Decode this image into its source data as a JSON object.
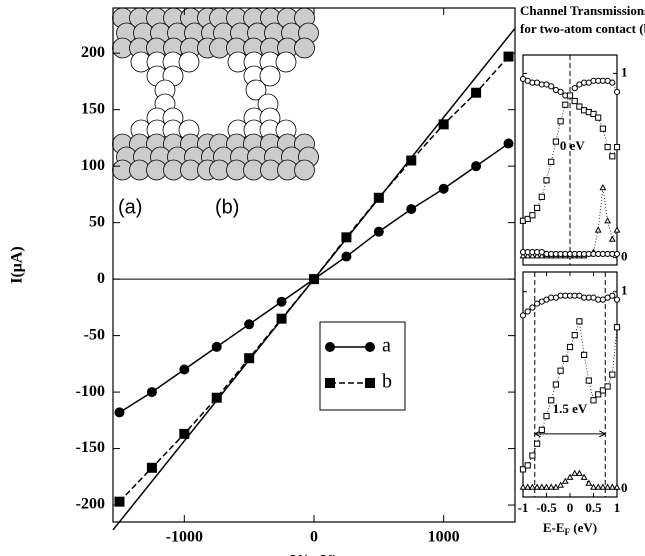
{
  "chart_data": [
    {
      "type": "line",
      "x_label": "V(mV)",
      "y_label": "I(μA)",
      "x": [
        -1500,
        -1250,
        -1000,
        -750,
        -500,
        -250,
        0,
        250,
        500,
        750,
        1000,
        1250,
        1500
      ],
      "series": [
        {
          "name": "a",
          "color": "#000000",
          "marker": "circle",
          "dash": "solid",
          "values": [
            -118,
            -100,
            -80,
            -60,
            -40,
            -20,
            0,
            20,
            42,
            62,
            80,
            100,
            120
          ]
        },
        {
          "name": "b",
          "color": "#000000",
          "marker": "square",
          "dash": "dashed",
          "values": [
            -197,
            -167,
            -137,
            -105,
            -70,
            -35,
            0,
            37,
            72,
            105,
            137,
            165,
            197
          ]
        },
        {
          "color": "#000000",
          "marker": "none",
          "dash": "solid",
          "x": [
            -1550,
            1550
          ],
          "values": [
            -222,
            222
          ]
        }
      ],
      "xlim": [
        -1550,
        1550
      ],
      "xticks": [
        -1000,
        0,
        1000
      ],
      "ylim": [
        -215,
        240
      ],
      "yticks": [
        -200,
        -150,
        -100,
        -50,
        0,
        50,
        100,
        150,
        200
      ],
      "zero_line": true,
      "legend": "lower right",
      "annotations": [
        {
          "text": "(a)"
        },
        {
          "text": "(b)"
        }
      ]
    },
    {
      "type": "line",
      "title": "Channel Transmissions",
      "subtitle": "for two-atom contact (b)",
      "x": [
        -1,
        -0.9,
        -0.8,
        -0.7,
        -0.6,
        -0.5,
        -0.4,
        -0.3,
        -0.2,
        -0.1,
        0,
        0.1,
        0.2,
        0.3,
        0.4,
        0.5,
        0.6,
        0.7,
        0.8,
        0.9,
        1
      ],
      "series": [
        {
          "color": "#000000",
          "marker": "circle",
          "values": [
            0.97,
            0.96,
            0.95,
            0.95,
            0.94,
            0.94,
            0.93,
            0.91,
            0.9,
            0.88,
            0.88,
            0.92,
            0.94,
            0.95,
            0.95,
            0.96,
            0.96,
            0.96,
            0.96,
            0.95,
            0.9
          ]
        },
        {
          "color": "#000000",
          "marker": "square",
          "values": [
            0.2,
            0.21,
            0.23,
            0.27,
            0.33,
            0.42,
            0.52,
            0.63,
            0.74,
            0.83,
            0.88,
            0.85,
            0.82,
            0.8,
            0.79,
            0.78,
            0.76,
            0.7,
            0.6,
            0.55,
            0.6
          ]
        },
        {
          "color": "#000000",
          "marker": "triangle",
          "values": [
            0.01,
            0.01,
            0.01,
            0.01,
            0.01,
            0.01,
            0.01,
            0.01,
            0.01,
            0.01,
            0.01,
            0.01,
            0.01,
            0.01,
            0.02,
            0.03,
            0.15,
            0.38,
            0.2,
            0.1,
            0.15
          ]
        },
        {
          "color": "#000000",
          "marker": "circle",
          "values": [
            0.03,
            0.03,
            0.03,
            0.03,
            0.03,
            0.02,
            0.02,
            0.02,
            0.02,
            0.02,
            0.02,
            0.02,
            0.02,
            0.02,
            0.02,
            0.02,
            0.02,
            0.02,
            0.02,
            0.02,
            0.02
          ]
        }
      ],
      "xlim": [
        -1,
        1
      ],
      "ylim": [
        -0.04,
        1.1
      ],
      "yticks": [
        0,
        1
      ],
      "vlines": [
        0
      ],
      "annotations": [
        {
          "text": "0 eV",
          "x": 0.05,
          "y": 0.6
        }
      ]
    },
    {
      "type": "line",
      "x_label": "E-E",
      "x_label_sub": "F",
      "x_label_suffix": " (eV)",
      "x": [
        -1,
        -0.9,
        -0.8,
        -0.7,
        -0.6,
        -0.5,
        -0.4,
        -0.3,
        -0.2,
        -0.1,
        0,
        0.1,
        0.2,
        0.3,
        0.4,
        0.5,
        0.6,
        0.7,
        0.8,
        0.9,
        1
      ],
      "series": [
        {
          "color": "#000000",
          "marker": "circle",
          "values": [
            0.88,
            0.9,
            0.92,
            0.94,
            0.95,
            0.96,
            0.97,
            0.97,
            0.98,
            0.98,
            0.98,
            0.98,
            0.98,
            0.97,
            0.97,
            0.97,
            0.96,
            0.96,
            0.97,
            0.98,
            0.96
          ]
        },
        {
          "color": "#000000",
          "marker": "square",
          "values": [
            0.1,
            0.12,
            0.17,
            0.23,
            0.3,
            0.37,
            0.45,
            0.53,
            0.6,
            0.66,
            0.72,
            0.78,
            0.85,
            0.68,
            0.55,
            0.45,
            0.48,
            0.5,
            0.52,
            0.58,
            0.82
          ]
        },
        {
          "color": "#000000",
          "marker": "triangle",
          "values": [
            0.01,
            0.01,
            0.01,
            0.01,
            0.01,
            0.01,
            0.01,
            0.01,
            0.02,
            0.04,
            0.06,
            0.08,
            0.08,
            0.06,
            0.03,
            0.01,
            0.01,
            0.01,
            0.01,
            0.01,
            0.01
          ]
        }
      ],
      "xlim": [
        -1,
        1
      ],
      "xticks": [
        -1,
        -0.5,
        0,
        0.5,
        1
      ],
      "ylim": [
        -0.04,
        1.1
      ],
      "yticks": [
        0,
        1
      ],
      "vlines": [
        -0.75,
        0.75
      ],
      "arrow": {
        "x": [
          -0.75,
          0.75
        ],
        "y": 0.28
      },
      "annotations": [
        {
          "text": "1.5 eV",
          "x": 0,
          "y": 0.4
        }
      ]
    }
  ]
}
